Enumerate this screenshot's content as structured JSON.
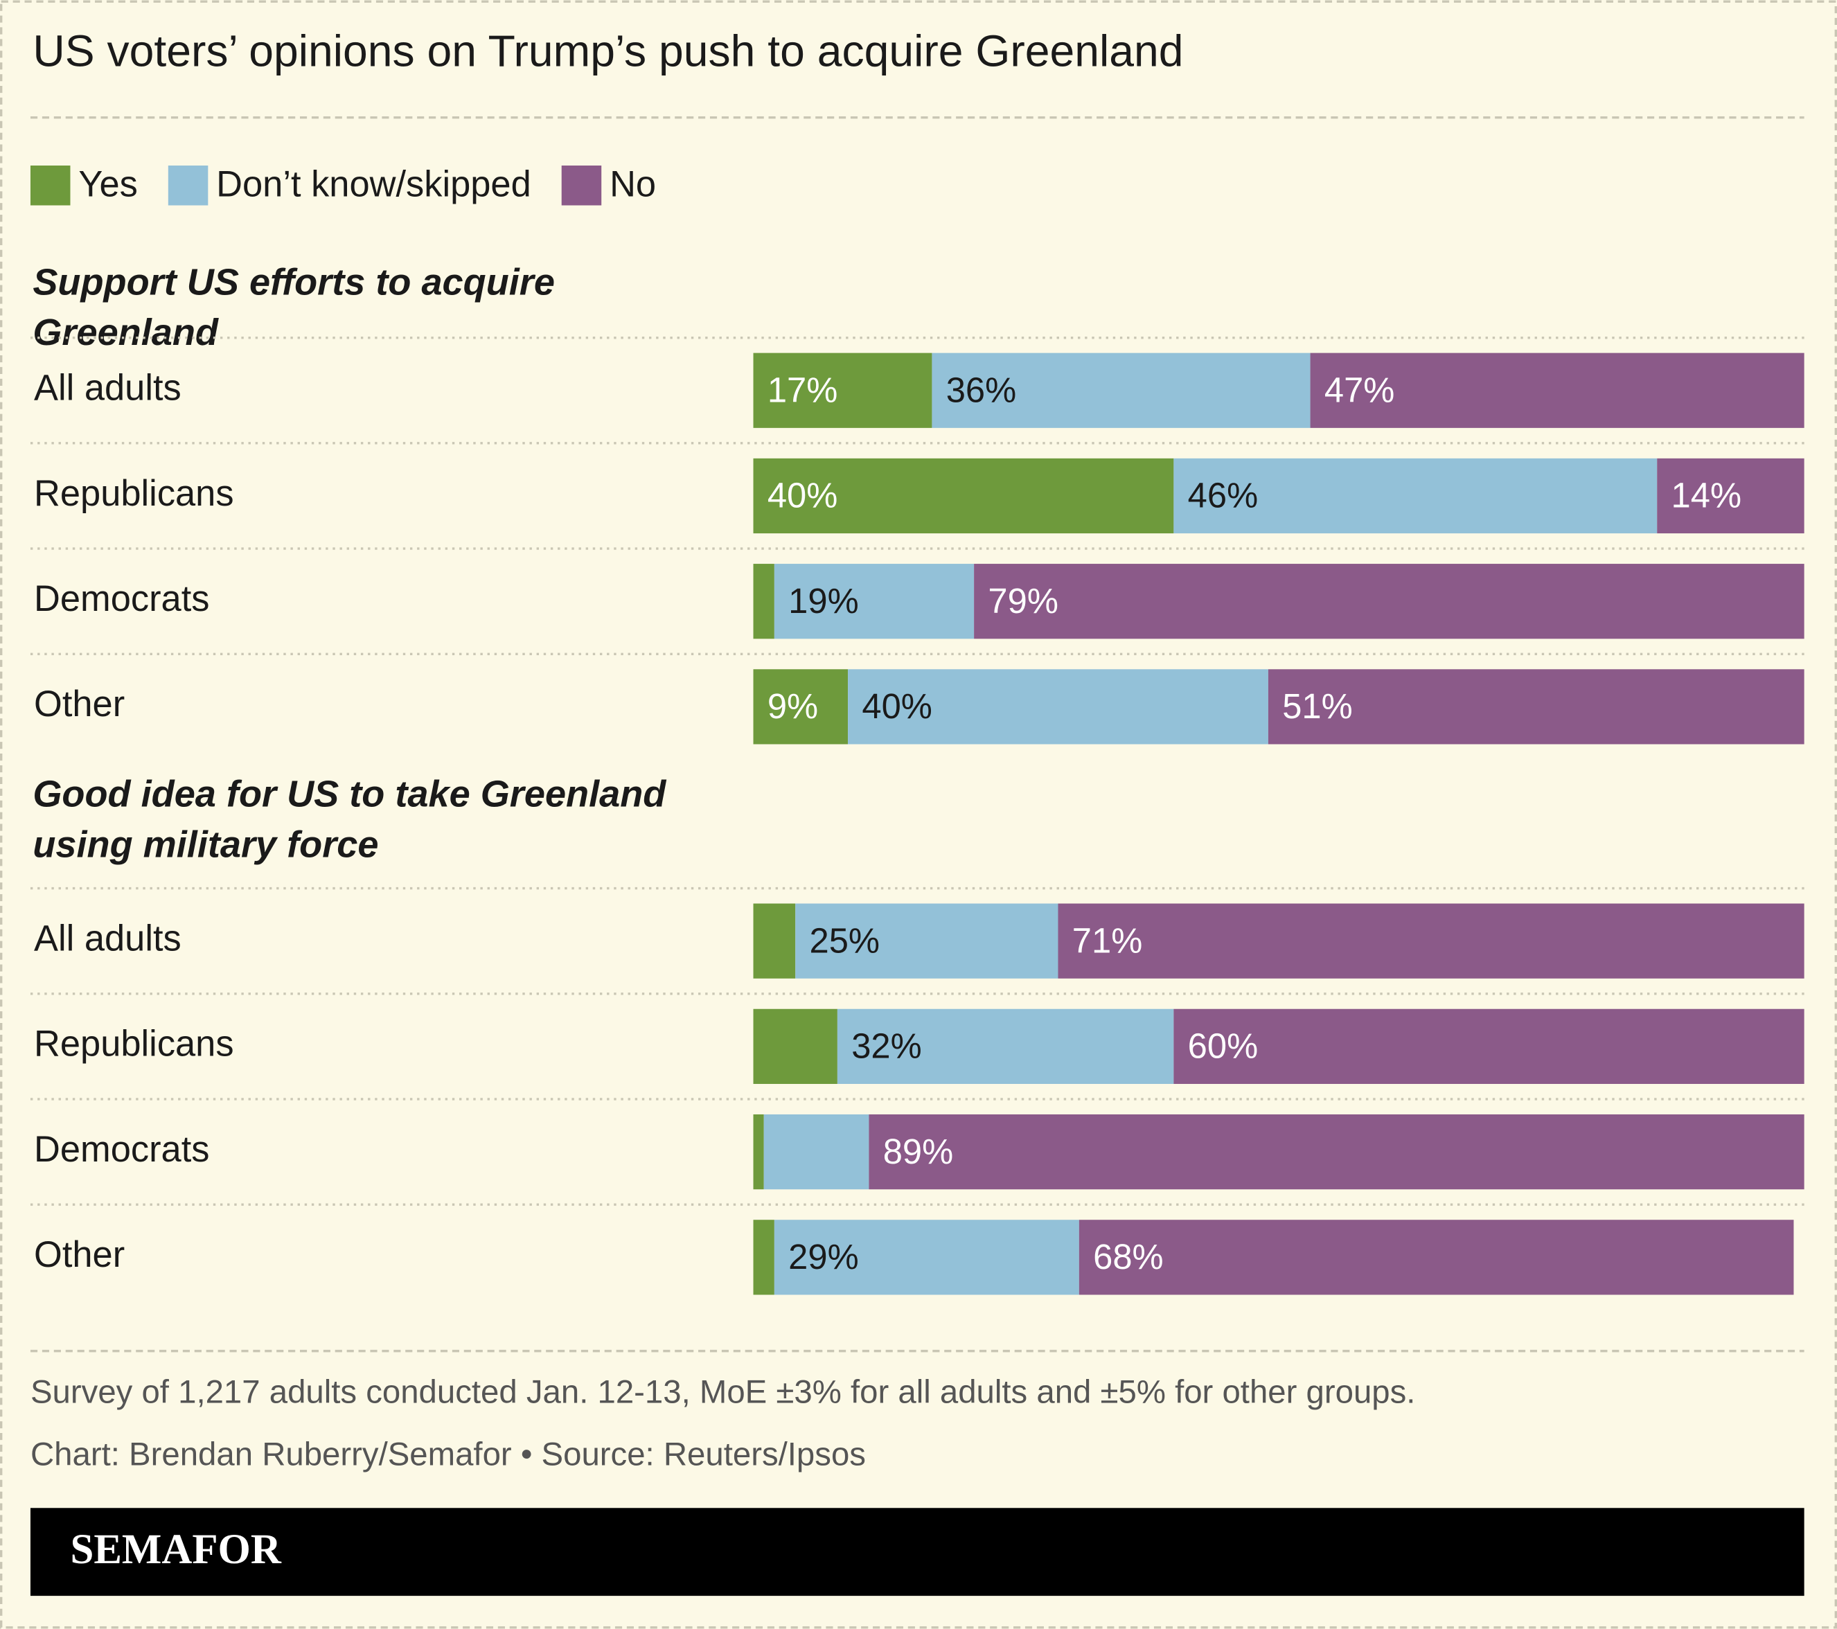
{
  "title": "US voters’ opinions on Trump’s push to acquire Greenland",
  "notes": "Survey of 1,217 adults conducted Jan. 12-13, MoE ±3% for all adults and ±5% for other groups.",
  "credit": "Chart: Brendan Ruberry/Semafor • Source: Reuters/Ipsos",
  "brand": "SEMAFOR",
  "chart_data": [
    {
      "type": "bar",
      "orientation": "horizontal",
      "stacked": true,
      "title": "Support US efforts to acquire Greenland",
      "categories": [
        "All adults",
        "Republicans",
        "Democrats",
        "Other"
      ],
      "xlim": [
        0,
        100
      ],
      "series": [
        {
          "name": "Yes",
          "color": "#6e9a3c",
          "values": [
            17,
            40,
            2,
            9
          ],
          "value_labels": [
            "17%",
            "40%",
            null,
            "9%"
          ]
        },
        {
          "name": "Don’t know/skipped",
          "color": "#93c1d8",
          "values": [
            36,
            46,
            19,
            40
          ],
          "value_labels": [
            "36%",
            "46%",
            "19%",
            "40%"
          ]
        },
        {
          "name": "No",
          "color": "#8b5a89",
          "values": [
            47,
            14,
            79,
            51
          ],
          "value_labels": [
            "47%",
            "14%",
            "79%",
            "51%"
          ]
        }
      ]
    },
    {
      "type": "bar",
      "orientation": "horizontal",
      "stacked": true,
      "title": "Good idea for US to take Greenland using military force",
      "categories": [
        "All adults",
        "Republicans",
        "Democrats",
        "Other"
      ],
      "xlim": [
        0,
        100
      ],
      "series": [
        {
          "color": "#6e9a3c",
          "values": [
            4,
            8,
            1,
            2
          ],
          "value_labels": [
            null,
            null,
            null,
            null
          ]
        },
        {
          "color": "#93c1d8",
          "values": [
            25,
            32,
            10,
            29
          ],
          "value_labels": [
            "25%",
            "32%",
            null,
            "29%"
          ]
        },
        {
          "color": "#8b5a89",
          "values": [
            71,
            60,
            89,
            68
          ],
          "value_labels": [
            "71%",
            "60%",
            "89%",
            "68%"
          ]
        }
      ]
    }
  ]
}
